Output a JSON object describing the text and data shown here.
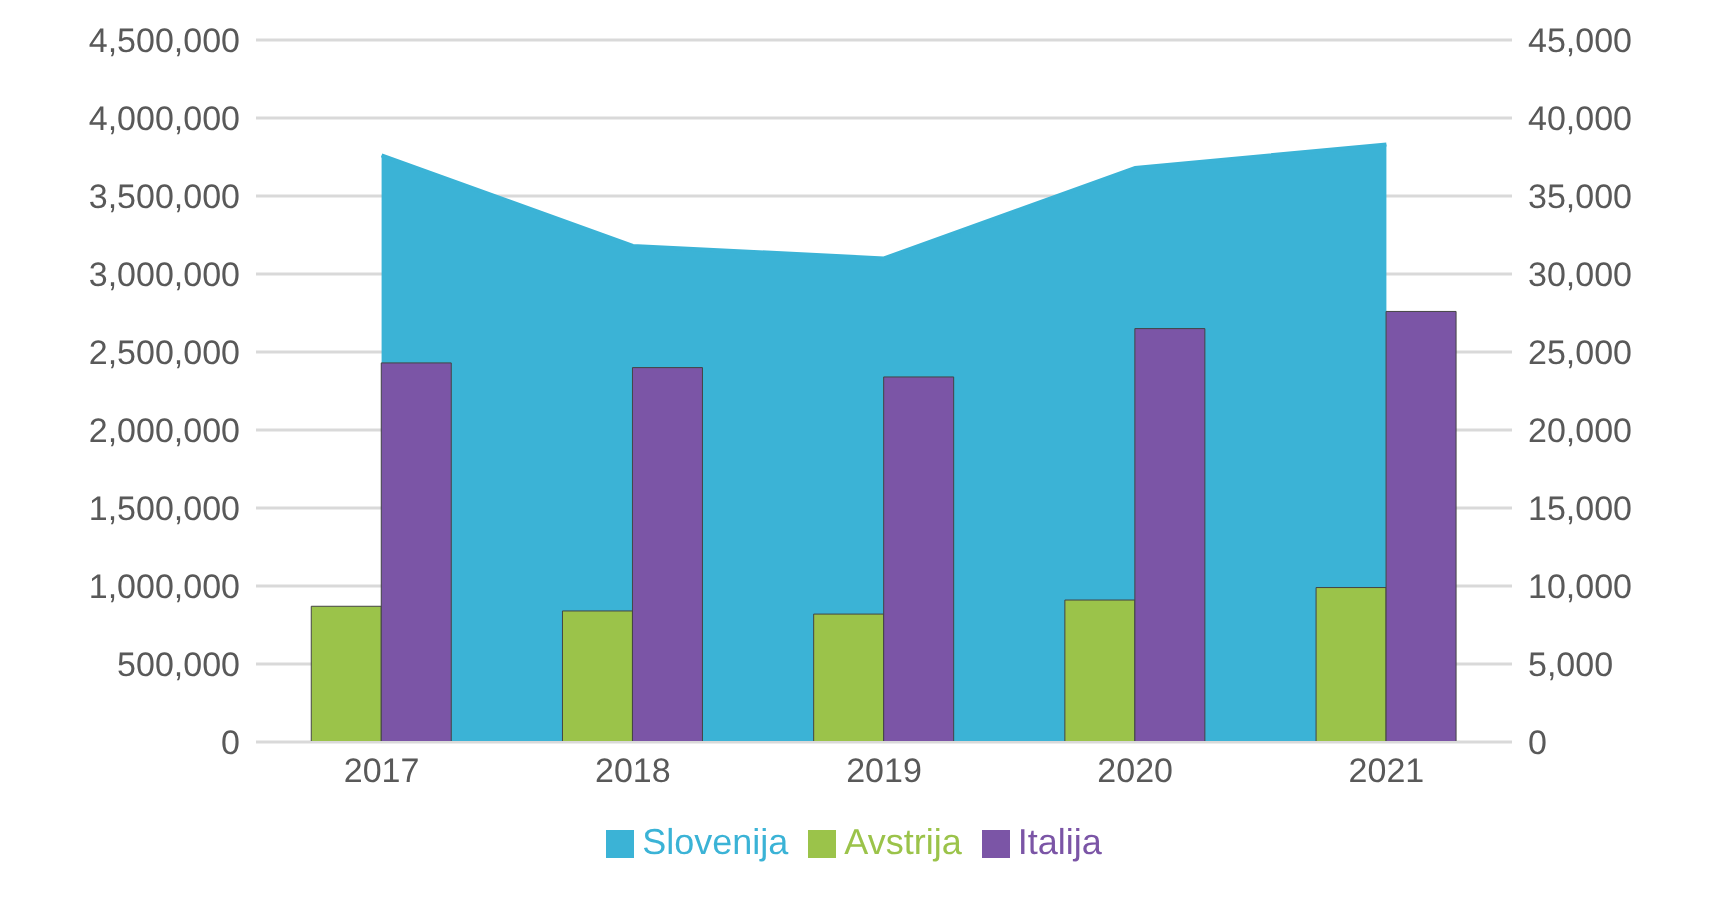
{
  "chart_data": {
    "type": "bar",
    "categories": [
      "2017",
      "2018",
      "2019",
      "2020",
      "2021"
    ],
    "series": [
      {
        "name": "Slovenija",
        "type": "area",
        "axis": "y2",
        "color": "#3bb3d6",
        "values": [
          37600,
          31800,
          31000,
          36800,
          38300
        ]
      },
      {
        "name": "Avstrija",
        "color": "#9bc34a",
        "values": [
          870000,
          840000,
          820000,
          910000,
          990000
        ]
      },
      {
        "name": "Italija",
        "color": "#7b55a6",
        "values": [
          2430000,
          2400000,
          2340000,
          2650000,
          2760000
        ]
      }
    ],
    "ylim": [
      0,
      4500000
    ],
    "yticks": [
      0,
      {
        "value": 500000,
        "label": "500,000"
      },
      {
        "value": 1000000,
        "label": "1,000,000"
      },
      {
        "value": 1500000,
        "label": "1,500,000"
      },
      {
        "value": 2000000,
        "label": "2,000,000"
      },
      {
        "value": 2500000,
        "label": "2,500,000"
      },
      {
        "value": 3000000,
        "label": "3,000,000"
      },
      {
        "value": 3500000,
        "label": "3,500,000"
      },
      {
        "value": 4000000,
        "label": "4,000,000"
      },
      {
        "value": 4500000,
        "label": "4,500,000"
      }
    ],
    "y2lim": [
      0,
      45000
    ],
    "y2ticks": [
      0,
      {
        "value": 5000,
        "label": "5,000"
      },
      {
        "value": 10000,
        "label": "10,000"
      },
      {
        "value": 15000,
        "label": "15,000"
      },
      {
        "value": 20000,
        "label": "20,000"
      },
      {
        "value": 25000,
        "label": "25,000"
      },
      {
        "value": 30000,
        "label": "30,000"
      },
      {
        "value": 35000,
        "label": "35,000"
      },
      {
        "value": 40000,
        "label": "40,000"
      },
      {
        "value": 45000,
        "label": "45,000"
      }
    ],
    "grid": "y",
    "legend": "bottom"
  }
}
